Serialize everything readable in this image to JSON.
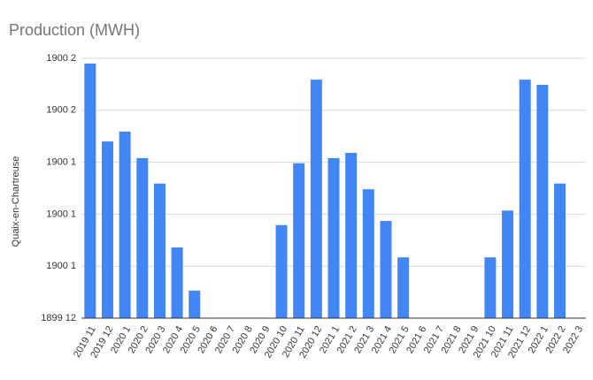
{
  "chart_data": {
    "type": "bar",
    "title": "Production (MWH)",
    "y_label": "Quaix-en-Chartreuse",
    "categories": [
      "2019 11",
      "2019 12",
      "2020 1",
      "2020 2",
      "2020 3",
      "2020 4",
      "2020 5",
      "2020 6",
      "2020 7",
      "2020 8",
      "2020 9",
      "2020 10",
      "2020 11",
      "2020 12",
      "2021 1",
      "2021 2",
      "2021 3",
      "2021 4",
      "2021 5",
      "2021 6",
      "2021 7",
      "2021 8",
      "2021 9",
      "2021 10",
      "2021 11",
      "2021 12",
      "2022 1",
      "2022 2",
      "2022 3"
    ],
    "values": [
      49.0,
      34.0,
      35.9,
      30.8,
      25.9,
      13.6,
      5.3,
      0,
      0,
      0,
      0,
      17.9,
      29.8,
      45.9,
      30.8,
      31.8,
      24.8,
      18.7,
      11.7,
      0,
      0,
      0,
      0,
      11.7,
      20.7,
      45.9,
      44.9,
      25.9,
      0
    ],
    "color": "#4285f4",
    "ylim": [
      0,
      50
    ],
    "yticks": [
      {
        "value": 0,
        "label": "1899 12"
      },
      {
        "value": 10,
        "label": "1900 1"
      },
      {
        "value": 20,
        "label": "1900 1"
      },
      {
        "value": 30,
        "label": "1900 1"
      },
      {
        "value": 40,
        "label": "1900 2"
      },
      {
        "value": 50,
        "label": "1900 2"
      }
    ],
    "grid": true
  }
}
